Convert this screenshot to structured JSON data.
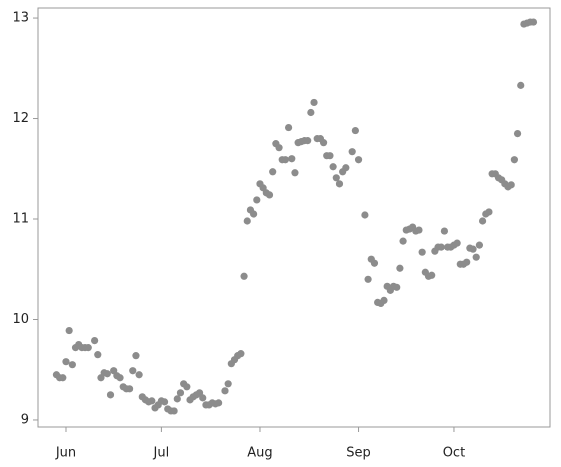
{
  "chart_data": {
    "type": "scatter",
    "color": "#8c8c8c",
    "x": [
      -3,
      -2,
      -1,
      0,
      1,
      2,
      3,
      4,
      5,
      6,
      7,
      9,
      10,
      11,
      12,
      13,
      14,
      15,
      16,
      17,
      18,
      19,
      20,
      21,
      22,
      23,
      24,
      25,
      26,
      27,
      28,
      29,
      30,
      31,
      32,
      33,
      34,
      35,
      36,
      37,
      38,
      39,
      40,
      41,
      42,
      43,
      44,
      45,
      46,
      47,
      48,
      50,
      51,
      52,
      53,
      54,
      55,
      56,
      57,
      58,
      59,
      60,
      61,
      62,
      63,
      64,
      65,
      66,
      67,
      68,
      69,
      70,
      71,
      72,
      73,
      74,
      75,
      76,
      77,
      78,
      79,
      80,
      81,
      82,
      83,
      84,
      85,
      86,
      87,
      88,
      90,
      91,
      92,
      94,
      95,
      96,
      97,
      98,
      99,
      100,
      101,
      102,
      103,
      104,
      105,
      106,
      107,
      108,
      109,
      110,
      111,
      112,
      113,
      114,
      115,
      116,
      117,
      118,
      119,
      120,
      121,
      122,
      123,
      124,
      125,
      126,
      127,
      128,
      129,
      130,
      131,
      132,
      133,
      134,
      135,
      136,
      137,
      138,
      139,
      140,
      141,
      142,
      143,
      144,
      145,
      146,
      147
    ],
    "values": [
      9.45,
      9.42,
      9.42,
      9.58,
      9.89,
      9.55,
      9.72,
      9.75,
      9.72,
      9.72,
      9.72,
      9.79,
      9.65,
      9.42,
      9.47,
      9.46,
      9.25,
      9.49,
      9.44,
      9.42,
      9.33,
      9.31,
      9.31,
      9.49,
      9.64,
      9.45,
      9.23,
      9.2,
      9.18,
      9.19,
      9.12,
      9.15,
      9.19,
      9.18,
      9.11,
      9.09,
      9.09,
      9.21,
      9.27,
      9.36,
      9.33,
      9.2,
      9.23,
      9.25,
      9.27,
      9.22,
      9.15,
      9.15,
      9.17,
      9.16,
      9.17,
      9.29,
      9.36,
      9.56,
      9.6,
      9.64,
      9.66,
      10.43,
      10.98,
      11.09,
      11.05,
      11.19,
      11.35,
      11.31,
      11.26,
      11.24,
      11.47,
      11.75,
      11.71,
      11.59,
      11.59,
      11.91,
      11.6,
      11.46,
      11.76,
      11.77,
      11.78,
      11.78,
      12.06,
      12.16,
      11.8,
      11.8,
      11.76,
      11.63,
      11.63,
      11.52,
      11.41,
      11.35,
      11.47,
      11.51,
      11.67,
      11.88,
      11.59,
      11.04,
      10.4,
      10.6,
      10.56,
      10.17,
      10.16,
      10.19,
      10.33,
      10.29,
      10.33,
      10.32,
      10.51,
      10.78,
      10.89,
      10.9,
      10.92,
      10.88,
      10.89,
      10.67,
      10.47,
      10.43,
      10.44,
      10.68,
      10.72,
      10.72,
      10.88,
      10.72,
      10.72,
      10.74,
      10.76,
      10.55,
      10.55,
      10.57,
      10.71,
      10.7,
      10.62,
      10.74,
      10.98,
      11.05,
      11.07,
      11.45,
      11.45,
      11.41,
      11.39,
      11.35,
      11.32,
      11.34,
      11.59,
      11.85,
      12.33,
      12.94,
      12.95,
      12.96,
      12.96
    ],
    "xlim": [
      -8.8,
      152.2
    ],
    "ylim": [
      8.93,
      13.1
    ],
    "xticks": [
      {
        "value": 0,
        "label": "Jun"
      },
      {
        "value": 30,
        "label": "Jul"
      },
      {
        "value": 61,
        "label": "Aug"
      },
      {
        "value": 92,
        "label": "Sep"
      },
      {
        "value": 122,
        "label": "Oct"
      }
    ],
    "yticks": [
      9,
      10,
      11,
      12,
      13
    ]
  }
}
